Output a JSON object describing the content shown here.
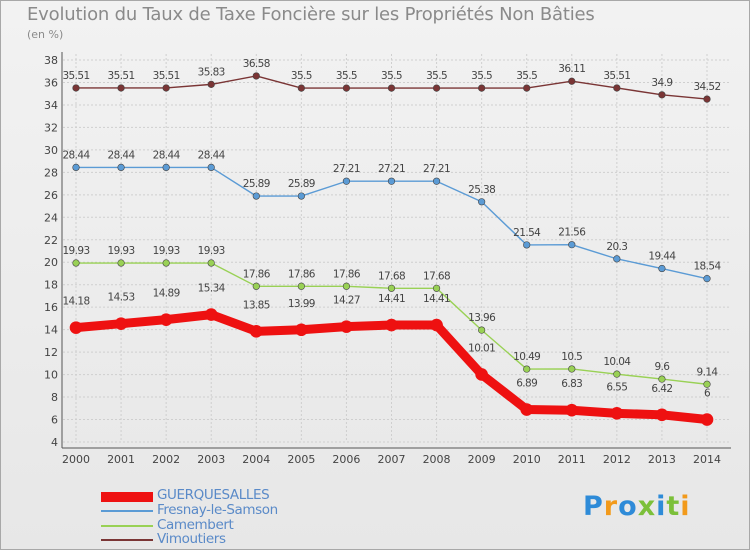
{
  "header": {
    "title": "Evolution du Taux de Taxe Foncière sur les Propriétés Non Bâties",
    "unit": "(en %)"
  },
  "chart_data": {
    "type": "line",
    "title": "Evolution du Taux de Taxe Foncière sur les Propriétés Non Bâties",
    "ylabel": "(en %)",
    "xlabel": "",
    "ylim": [
      4,
      38
    ],
    "yticks": [
      4,
      6,
      8,
      10,
      12,
      14,
      16,
      18,
      20,
      22,
      24,
      26,
      28,
      30,
      32,
      34,
      36,
      38
    ],
    "grid": true,
    "legend_position": "bottom-left",
    "x": [
      "2000",
      "2001",
      "2002",
      "2003",
      "2004",
      "2005",
      "2006",
      "2007",
      "2008",
      "2009",
      "2010",
      "2011",
      "2012",
      "2013",
      "2014"
    ],
    "series": [
      {
        "name": "Vimoutiers",
        "color": "#7a3535",
        "values": [
          35.51,
          35.51,
          35.51,
          35.83,
          36.58,
          35.5,
          35.5,
          35.5,
          35.5,
          35.5,
          35.5,
          36.11,
          35.51,
          34.9,
          34.52
        ],
        "labels": [
          "35.51",
          "35.51",
          "35.51",
          "35.83",
          "36.58",
          "35.5",
          "35.5",
          "35.5",
          "35.5",
          "35.5",
          "35.5",
          "36.11",
          "35.51",
          "34.9",
          "34.52"
        ]
      },
      {
        "name": "Fresnay-le-Samson",
        "color": "#5b9bd5",
        "values": [
          28.44,
          28.44,
          28.44,
          28.44,
          25.89,
          25.89,
          27.21,
          27.21,
          27.21,
          25.38,
          21.54,
          21.56,
          20.3,
          19.44,
          18.54
        ],
        "labels": [
          "28.44",
          "28.44",
          "28.44",
          "28.44",
          "25.89",
          "25.89",
          "27.21",
          "27.21",
          "27.21",
          "25.38",
          "21.54",
          "21.56",
          "20.3",
          "19.44",
          "18.54"
        ]
      },
      {
        "name": "Camembert",
        "color": "#99d155",
        "values": [
          19.93,
          19.93,
          19.93,
          19.93,
          17.86,
          17.86,
          17.86,
          17.68,
          17.68,
          13.96,
          10.49,
          10.5,
          10.04,
          9.6,
          9.14
        ],
        "labels": [
          "19.93",
          "19.93",
          "19.93",
          "19.93",
          "17.86",
          "17.86",
          "17.86",
          "17.68",
          "17.68",
          "13.96",
          "10.49",
          "10.5",
          "10.04",
          "9.6",
          "9.14"
        ]
      },
      {
        "name": "GUERQUESALLES",
        "color": "#ee1111",
        "values": [
          14.18,
          14.53,
          14.89,
          15.34,
          13.85,
          13.99,
          14.27,
          14.41,
          14.41,
          10.01,
          6.89,
          6.83,
          6.55,
          6.42,
          6
        ],
        "labels": [
          "14.18",
          "14.53",
          "14.89",
          "15.34",
          "13.85",
          "13.99",
          "14.27",
          "14.41",
          "14.41",
          "10.01",
          "6.89",
          "6.83",
          "6.55",
          "6.42",
          "6"
        ]
      }
    ]
  },
  "legend": [
    {
      "name": "GUERQUESALLES",
      "color": "#ee1111"
    },
    {
      "name": "Fresnay-le-Samson",
      "color": "#5b9bd5"
    },
    {
      "name": "Camembert",
      "color": "#99d155"
    },
    {
      "name": "Vimoutiers",
      "color": "#7a3535"
    }
  ],
  "logo": {
    "text": "Proxiti",
    "colors": [
      "#2e8bd8",
      "#f29a1b",
      "#2e8bd8",
      "#7cc03a",
      "#2e8bd8",
      "#7cc03a",
      "#f29a1b"
    ]
  }
}
